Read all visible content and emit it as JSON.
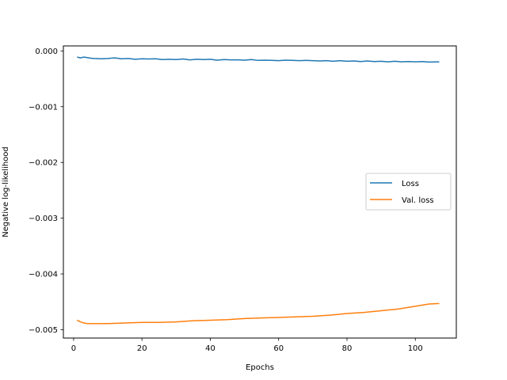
{
  "chart_data": {
    "type": "line",
    "title": "",
    "xlabel": "Epochs",
    "ylabel": "Negative log-likelihood",
    "xlim": [
      -3,
      112
    ],
    "ylim": [
      -0.00515,
      9e-05
    ],
    "xticks": [
      0,
      20,
      40,
      60,
      80,
      100
    ],
    "xtick_labels": [
      "0",
      "20",
      "40",
      "60",
      "80",
      "100"
    ],
    "yticks": [
      0.0,
      -0.001,
      -0.002,
      -0.003,
      -0.004,
      -0.005
    ],
    "ytick_labels": [
      "0.000",
      "−0.001",
      "−0.002",
      "−0.003",
      "−0.004",
      "−0.005"
    ],
    "grid": false,
    "legend_position": "center-right",
    "series": [
      {
        "name": "Loss",
        "color": "#1f77b4",
        "x": [
          1,
          2,
          3,
          4,
          5,
          6,
          8,
          10,
          12,
          14,
          16,
          18,
          20,
          22,
          24,
          26,
          28,
          30,
          32,
          34,
          36,
          38,
          40,
          42,
          44,
          46,
          48,
          50,
          52,
          54,
          56,
          58,
          60,
          62,
          64,
          66,
          68,
          70,
          72,
          74,
          76,
          78,
          80,
          82,
          84,
          86,
          88,
          90,
          92,
          94,
          96,
          98,
          100,
          102,
          104,
          107
        ],
        "y": [
          -0.00011,
          -0.000125,
          -0.00011,
          -0.00012,
          -0.00013,
          -0.000135,
          -0.00014,
          -0.000135,
          -0.000125,
          -0.00014,
          -0.000135,
          -0.00015,
          -0.00014,
          -0.000145,
          -0.00014,
          -0.000155,
          -0.00015,
          -0.000155,
          -0.000145,
          -0.00016,
          -0.00015,
          -0.000155,
          -0.00015,
          -0.000165,
          -0.000155,
          -0.00016,
          -0.00016,
          -0.000165,
          -0.000155,
          -0.00017,
          -0.000165,
          -0.00017,
          -0.000175,
          -0.000165,
          -0.00017,
          -0.000175,
          -0.00017,
          -0.000175,
          -0.00018,
          -0.000175,
          -0.000185,
          -0.000175,
          -0.000185,
          -0.00018,
          -0.00019,
          -0.00018,
          -0.00019,
          -0.000185,
          -0.000195,
          -0.000185,
          -0.000195,
          -0.00019,
          -0.000195,
          -0.00019,
          -0.0002,
          -0.000195
        ]
      },
      {
        "name": "Val. loss",
        "color": "#ff7f0e",
        "x": [
          1,
          2,
          3,
          4,
          5,
          6,
          8,
          10,
          15,
          20,
          25,
          30,
          35,
          40,
          45,
          50,
          55,
          60,
          65,
          70,
          75,
          80,
          85,
          90,
          95,
          100,
          104,
          107
        ],
        "y": [
          -0.00483,
          -0.00486,
          -0.00488,
          -0.00489,
          -0.00489,
          -0.00489,
          -0.00489,
          -0.00489,
          -0.00488,
          -0.00487,
          -0.00487,
          -0.00486,
          -0.00484,
          -0.00483,
          -0.00482,
          -0.0048,
          -0.00479,
          -0.00478,
          -0.00477,
          -0.00476,
          -0.00474,
          -0.00471,
          -0.00469,
          -0.00466,
          -0.00463,
          -0.00458,
          -0.00454,
          -0.00453
        ]
      }
    ]
  }
}
